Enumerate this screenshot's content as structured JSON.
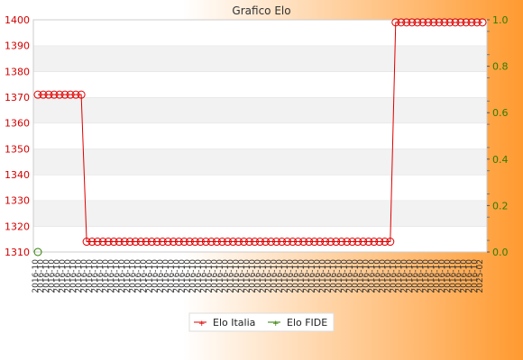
{
  "chart_data": {
    "type": "line",
    "title": "Grafico Elo",
    "xlabel": "",
    "ylabel": "",
    "y_left": {
      "min": 1310,
      "max": 1400,
      "ticks": [
        1310,
        1320,
        1330,
        1340,
        1350,
        1360,
        1370,
        1380,
        1390,
        1400
      ]
    },
    "y_right": {
      "min": 0.0,
      "max": 1.0,
      "ticks": [
        "0.0",
        "0.2",
        "0.4",
        "0.6",
        "0.8",
        "1.0"
      ]
    },
    "x_tick_first": "2016-10",
    "x_tick_last": "2025-02",
    "series": [
      {
        "name": "Elo Italia",
        "color": "#e00000",
        "axis": "left",
        "segments": [
          {
            "value": 1371,
            "count": 9
          },
          {
            "value": 1314,
            "count": 57
          },
          {
            "value": 1399,
            "count": 17
          }
        ]
      },
      {
        "name": "Elo FIDE",
        "color": "#2e7d00",
        "axis": "right",
        "segments": [
          {
            "value": 0,
            "count": 1
          }
        ]
      }
    ],
    "grid": true,
    "legend_position": "bottom-center",
    "background": {
      "page_gradient": [
        "#ffffff",
        "#ff9a30"
      ],
      "plot_band_colors": [
        "#ffffff",
        "#f2f2f2"
      ]
    }
  }
}
